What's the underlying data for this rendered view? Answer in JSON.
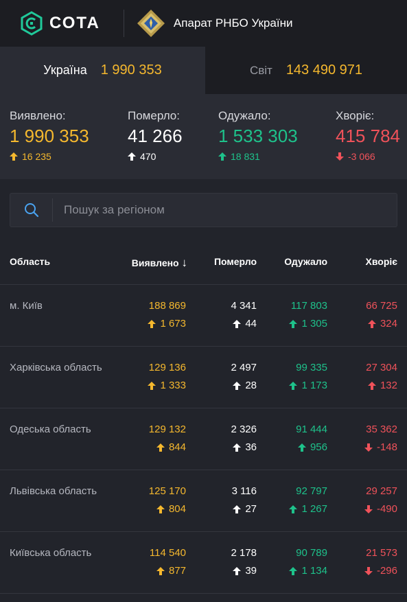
{
  "brand": {
    "name": "СОТА",
    "partner": "Апарат РНБО України"
  },
  "tabs": [
    {
      "label": "Україна",
      "value": "1 990 353",
      "active": true
    },
    {
      "label": "Світ",
      "value": "143 490 971",
      "active": false
    }
  ],
  "summary": {
    "detected": {
      "label": "Виявлено:",
      "value": "1 990 353",
      "delta": "16 235",
      "dir": "up"
    },
    "died": {
      "label": "Померло:",
      "value": "41 266",
      "delta": "470",
      "dir": "up"
    },
    "recovered": {
      "label": "Одужало:",
      "value": "1 533 303",
      "delta": "18 831",
      "dir": "up"
    },
    "sick": {
      "label": "Хворіє:",
      "value": "415 784",
      "delta": "-3 066",
      "dir": "down"
    }
  },
  "search": {
    "placeholder": "Пошук за регіоном",
    "value": ""
  },
  "table": {
    "headers": {
      "region": "Область",
      "detected": "Виявлено",
      "sort_icon": "↓",
      "died": "Померло",
      "recovered": "Одужало",
      "sick": "Хворіє"
    },
    "rows": [
      {
        "region": "м. Київ",
        "detected": "188 869",
        "detected_d": "1 673",
        "died": "4 341",
        "died_d": "44",
        "recovered": "117 803",
        "recovered_d": "1 305",
        "sick": "66 725",
        "sick_d": "324",
        "sick_dir": "up"
      },
      {
        "region": "Харківська область",
        "detected": "129 136",
        "detected_d": "1 333",
        "died": "2 497",
        "died_d": "28",
        "recovered": "99 335",
        "recovered_d": "1 173",
        "sick": "27 304",
        "sick_d": "132",
        "sick_dir": "up"
      },
      {
        "region": "Одеська область",
        "detected": "129 132",
        "detected_d": "844",
        "died": "2 326",
        "died_d": "36",
        "recovered": "91 444",
        "recovered_d": "956",
        "sick": "35 362",
        "sick_d": "-148",
        "sick_dir": "down"
      },
      {
        "region": "Львівська область",
        "detected": "125 170",
        "detected_d": "804",
        "died": "3 116",
        "died_d": "27",
        "recovered": "92 797",
        "recovered_d": "1 267",
        "sick": "29 257",
        "sick_d": "-490",
        "sick_dir": "down"
      },
      {
        "region": "Київська область",
        "detected": "114 540",
        "detected_d": "877",
        "died": "2 178",
        "died_d": "39",
        "recovered": "90 789",
        "recovered_d": "1 134",
        "sick": "21 573",
        "sick_d": "-296",
        "sick_dir": "down"
      }
    ]
  },
  "colors": {
    "detected": "#f5b82e",
    "died": "#ffffff",
    "recovered": "#1ec28b",
    "sick": "#f0525a"
  }
}
